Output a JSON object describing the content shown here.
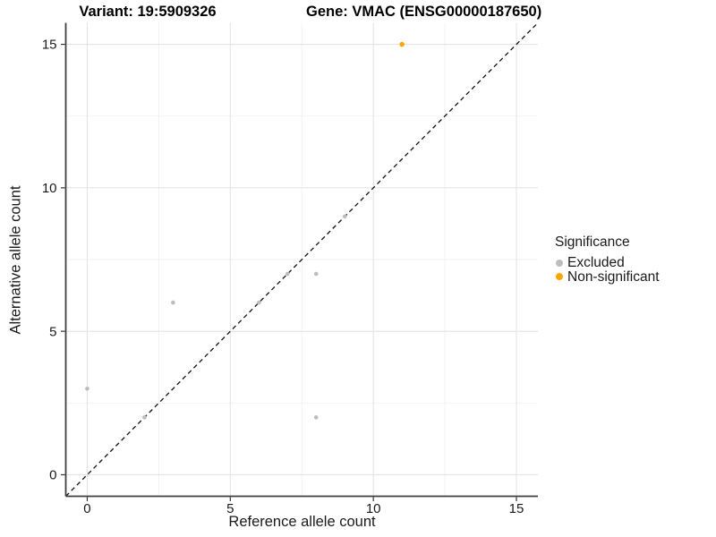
{
  "titles": {
    "variant": "Variant: 19:5909326",
    "gene": "Gene: VMAC (ENSG00000187650)"
  },
  "chart_data": {
    "type": "scatter",
    "title": "Variant: 19:5909326  /  Gene: VMAC (ENSG00000187650)",
    "xlabel": "Reference allele count",
    "ylabel": "Alternative allele count",
    "xlim": [
      -0.75,
      15.75
    ],
    "ylim": [
      -0.75,
      15.75
    ],
    "x_ticks": [
      0,
      5,
      10,
      15
    ],
    "y_ticks": [
      0,
      5,
      10,
      15
    ],
    "minor_ticks": [
      2.5,
      7.5,
      12.5
    ],
    "grid": true,
    "identity_line": {
      "slope": 1,
      "intercept": 0,
      "style": "dashed",
      "color": "#111111"
    },
    "series": [
      {
        "name": "Excluded",
        "color": "#bdbdbd",
        "radius": 2.3,
        "points": [
          [
            0,
            3
          ],
          [
            2,
            2
          ],
          [
            3,
            6
          ],
          [
            6,
            6
          ],
          [
            7,
            7
          ],
          [
            8,
            2
          ],
          [
            8,
            7
          ],
          [
            9,
            9
          ]
        ]
      },
      {
        "name": "Non-significant",
        "color": "#ffa500",
        "radius": 2.8,
        "points": [
          [
            11,
            15
          ]
        ]
      }
    ],
    "legend_position": "right"
  },
  "legend": {
    "title": "Significance",
    "entries": [
      {
        "label": "Excluded",
        "color": "#bdbdbd"
      },
      {
        "label": "Non-significant",
        "color": "#ffa500"
      }
    ]
  },
  "colors": {
    "background": "#ffffff",
    "grid_major": "#e4e4e4",
    "grid_minor": "#f2f2f2",
    "axis_line": "#404040",
    "text": "#1a1a1a"
  }
}
